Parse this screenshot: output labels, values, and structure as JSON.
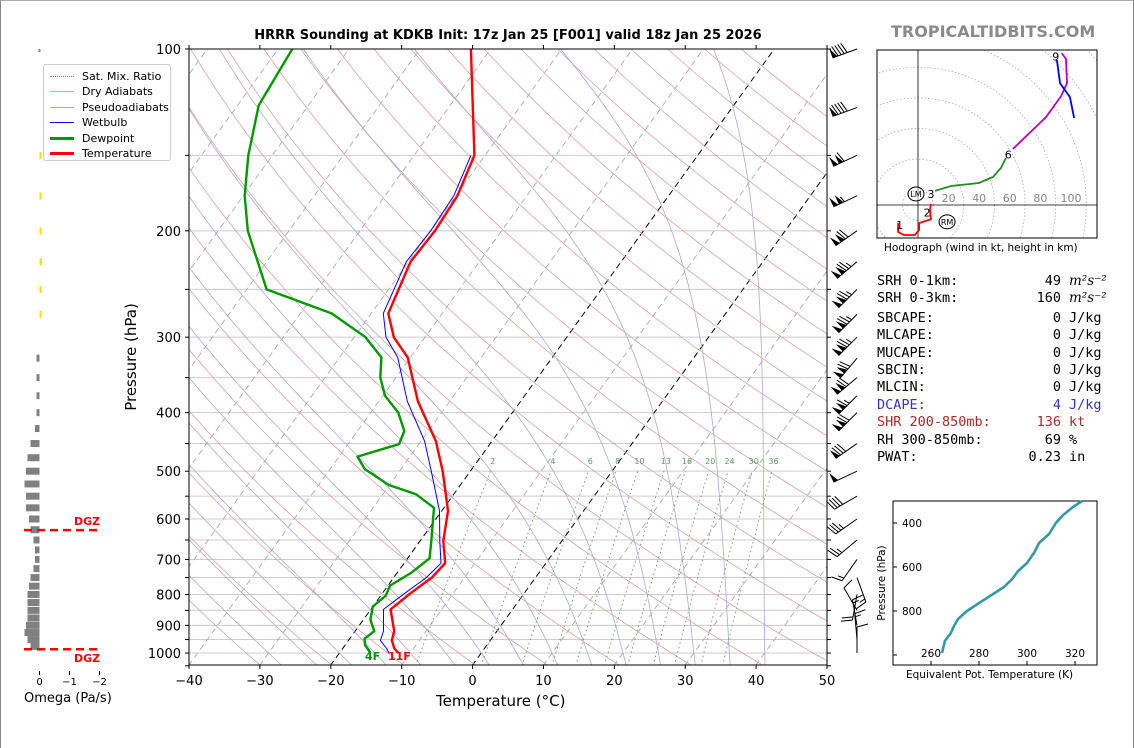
{
  "site": "TROPICALTIDBITS.COM",
  "title": "HRRR Sounding at KDKB Init: 17z Jan 25 [F001] valid 18z Jan 25 2026",
  "legend": [
    {
      "label": "Sat. Mix. Ratio",
      "color": "#5aa05a",
      "style": "dotted"
    },
    {
      "label": "Dry Adiabats",
      "color": "#e0a0a0",
      "style": "solid"
    },
    {
      "label": "Pseudoadiabats",
      "color": "#a8a8e0",
      "style": "solid"
    },
    {
      "label": "Wetbulb",
      "color": "#0000ff",
      "style": "solid"
    },
    {
      "label": "Dewpoint",
      "color": "#009900",
      "style": "thick"
    },
    {
      "label": "Temperature",
      "color": "#ff0000",
      "style": "thick"
    }
  ],
  "surface_labels": {
    "dewpoint": "4F",
    "temperature": "11F"
  },
  "dgz_label": "DGZ",
  "stats": [
    {
      "label": "SRH 0-1km:",
      "value": "49",
      "unit": "m²s⁻²",
      "color": "#000000"
    },
    {
      "label": "SRH 0-3km:",
      "value": "160",
      "unit": "m²s⁻²",
      "color": "#000000"
    },
    {
      "label": "SBCAPE:",
      "value": "0",
      "unit": "J/kg",
      "color": "#000000"
    },
    {
      "label": "MLCAPE:",
      "value": "0",
      "unit": "J/kg",
      "color": "#000000"
    },
    {
      "label": "MUCAPE:",
      "value": "0",
      "unit": "J/kg",
      "color": "#000000"
    },
    {
      "label": "SBCIN:",
      "value": "0",
      "unit": "J/kg",
      "color": "#000000"
    },
    {
      "label": "MLCIN:",
      "value": "0",
      "unit": "J/kg",
      "color": "#000000"
    },
    {
      "label": "DCAPE:",
      "value": "4",
      "unit": "J/kg",
      "color": "#3333cc"
    },
    {
      "label": "SHR 200-850mb:",
      "value": "136",
      "unit": "kt",
      "color": "#a52a2a"
    },
    {
      "label": "RH 300-850mb:",
      "value": "69",
      "unit": "%",
      "color": "#000000"
    },
    {
      "label": "PWAT:",
      "value": "0.23",
      "unit": "in",
      "color": "#000000"
    }
  ],
  "chart_data": [
    {
      "id": "skewt",
      "type": "line",
      "title": "HRRR Sounding at KDKB Init: 17z Jan 25 [F001] valid 18z Jan 25 2026",
      "xlabel": "Temperature (°C)",
      "ylabel": "Pressure (hPa)",
      "xlim": [
        -40,
        50
      ],
      "ylim": [
        1050,
        100
      ],
      "xticks": [
        -40,
        -30,
        -20,
        -10,
        0,
        10,
        20,
        30,
        40,
        50
      ],
      "yticks": [
        100,
        200,
        300,
        400,
        500,
        600,
        700,
        800,
        900,
        1000
      ],
      "mixing_ratio_labels": [
        2,
        4,
        6,
        8,
        10,
        13,
        16,
        20,
        24,
        30,
        36
      ],
      "highlight_isotherms": [
        -20,
        0
      ],
      "series": [
        {
          "name": "Temperature",
          "color": "#ff0000",
          "p": [
            100,
            150,
            175,
            200,
            225,
            274,
            300,
            324,
            383,
            446,
            500,
            582,
            653,
            710,
            750,
            795,
            847,
            920,
            953,
            983,
            1000
          ],
          "t": [
            -62.8,
            -51.5,
            -49.8,
            -49.4,
            -49.7,
            -47.6,
            -44.4,
            -40.4,
            -34.5,
            -27.9,
            -23.9,
            -19.1,
            -16.7,
            -14.2,
            -14.6,
            -16.0,
            -17.2,
            -14.5,
            -13.9,
            -12.7,
            -11.7
          ]
        },
        {
          "name": "Dewpoint",
          "color": "#009900",
          "p": [
            100,
            124,
            150,
            175,
            200,
            250,
            274,
            300,
            324,
            350,
            375,
            400,
            429,
            451,
            473,
            496,
            527,
            546,
            575,
            653,
            697,
            736,
            773,
            804,
            838,
            881,
            920,
            947,
            970,
            1000
          ],
          "t": [
            -88,
            -87,
            -83.4,
            -79.8,
            -75.8,
            -67.2,
            -55.6,
            -48.4,
            -44.1,
            -42.2,
            -39.7,
            -36.1,
            -33.4,
            -32.8,
            -37.4,
            -35.1,
            -30.1,
            -25.3,
            -21.4,
            -18.4,
            -16.9,
            -18,
            -19.7,
            -19.3,
            -20,
            -19,
            -17.3,
            -17.9,
            -17.2,
            -15.6
          ]
        },
        {
          "name": "Wetbulb",
          "color": "#0000ff",
          "p": [
            150,
            175,
            200,
            225,
            274,
            300,
            324,
            383,
            446,
            500,
            582,
            653,
            710,
            750,
            795,
            847,
            920,
            953,
            983,
            1000
          ],
          "t": [
            -52,
            -50.3,
            -50,
            -50.3,
            -48.3,
            -45.5,
            -41.8,
            -36,
            -29.5,
            -25.5,
            -20.3,
            -17.2,
            -14.8,
            -15.4,
            -16.8,
            -18.2,
            -16,
            -15.5,
            -13.8,
            -13
          ]
        }
      ],
      "wind_barbs": {
        "p": [
          100,
          125,
          150,
          175,
          200,
          225,
          250,
          275,
          300,
          325,
          350,
          375,
          400,
          450,
          500,
          550,
          600,
          650,
          700,
          750,
          800,
          850,
          900,
          950,
          1000
        ],
        "dir": [
          250,
          250,
          245,
          245,
          235,
          230,
          225,
          225,
          225,
          220,
          230,
          225,
          225,
          235,
          245,
          240,
          235,
          230,
          215,
          160,
          190,
          330,
          350,
          355,
          0
        ],
        "kt": [
          90,
          90,
          110,
          105,
          120,
          125,
          125,
          125,
          125,
          120,
          120,
          115,
          120,
          80,
          50,
          40,
          35,
          25,
          15,
          15,
          20,
          10,
          15,
          15,
          10
        ]
      }
    },
    {
      "id": "omega",
      "type": "bar",
      "xlabel": "Omega (Pa/s)",
      "xlim": [
        0.5,
        -2
      ],
      "xticks": [
        0,
        -1,
        -2
      ],
      "xtick_labels": [
        "0",
        "−1",
        "−2"
      ],
      "p": [
        150,
        175,
        200,
        225,
        250,
        275,
        325,
        350,
        375,
        400,
        425,
        450,
        475,
        500,
        525,
        550,
        575,
        600,
        625,
        650,
        675,
        700,
        725,
        750,
        775,
        800,
        825,
        850,
        875,
        900,
        925,
        950,
        975
      ],
      "values": [
        -0.04,
        -0.06,
        -0.06,
        -0.08,
        -0.07,
        -0.03,
        0.1,
        0.1,
        0.1,
        0.1,
        0.15,
        0.3,
        0.4,
        0.45,
        0.5,
        0.45,
        0.45,
        0.35,
        0.3,
        0.2,
        0.15,
        0.15,
        0.2,
        0.3,
        0.35,
        0.4,
        0.4,
        0.4,
        0.4,
        0.45,
        0.5,
        0.4,
        0.3
      ],
      "dgz_p": [
        626,
        986
      ]
    },
    {
      "id": "hodograph",
      "type": "line",
      "xlabel": "Hodograph (wind in kt, height in km)",
      "ring_labels": [
        20,
        40,
        60,
        80,
        100
      ],
      "segments": [
        {
          "color": "#ff0000",
          "u": [
            -13,
            -13,
            -9.2,
            -2,
            0.7,
            0.7,
            8.5,
            7.8,
            8.5
          ],
          "v": [
            -11.8,
            -17.6,
            -19.6,
            -19.6,
            -16.3,
            -11.8,
            -9.2,
            -3.3,
            0.7
          ]
        },
        {
          "color": "#228b22",
          "u": [
            11.1,
            21.6,
            39.9,
            49,
            54.2,
            57.5
          ],
          "v": [
            9.2,
            12.4,
            14.4,
            18.3,
            24.2,
            30.7
          ]
        },
        {
          "color": "#bb00bb",
          "u": [
            62,
            83.7,
            93.5,
            97.4,
            96.7,
            94
          ],
          "v": [
            36.6,
            57.5,
            71.2,
            79.7,
            95.4,
            99.3
          ]
        },
        {
          "color": "#0000ff",
          "u": [
            90.8,
            92.8,
            99.3,
            102
          ],
          "v": [
            94.8,
            79.7,
            70.6,
            56.9
          ]
        }
      ],
      "height_labels": [
        {
          "text": "1",
          "u": -12,
          "v": -13
        },
        {
          "text": "2",
          "u": 6,
          "v": -5
        },
        {
          "text": "3",
          "u": 8.5,
          "v": 7.2
        },
        {
          "text": "6",
          "u": 59,
          "v": 33
        },
        {
          "text": "9",
          "u": 90,
          "v": 97
        }
      ],
      "storm_motion": [
        {
          "text": "LM",
          "u": -1.3,
          "v": 7.2
        },
        {
          "text": "RM",
          "u": 19,
          "v": -11
        }
      ]
    },
    {
      "id": "theta_e",
      "type": "line",
      "xlabel": "Equivalent Pot. Temperature (K)",
      "ylabel": "Pressure (hPa)",
      "xticks": [
        260,
        280,
        300,
        320
      ],
      "yticks": [
        400,
        600,
        800
      ],
      "xlim": [
        255,
        327
      ],
      "ylim": [
        1040,
        300
      ],
      "p": [
        991,
        936,
        900,
        868,
        836,
        800,
        764,
        723,
        691,
        655,
        618,
        582,
        536,
        491,
        450,
        400,
        364,
        327,
        300
      ],
      "values": [
        264.6,
        265.8,
        268.3,
        269.6,
        271.3,
        275,
        280,
        285.8,
        290.4,
        293.8,
        296.3,
        300,
        302.9,
        305,
        309.2,
        312,
        315,
        319.2,
        323
      ],
      "color": "#3399aa"
    }
  ]
}
